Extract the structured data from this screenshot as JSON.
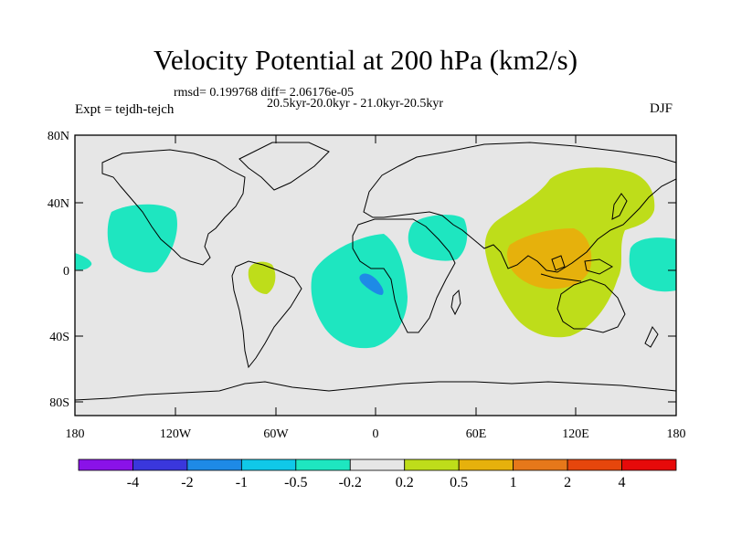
{
  "title": "Velocity Potential at 200 hPa (km2/s)",
  "subtitle_stats": "rmsd= 0.199768 diff= 2.06176e-05",
  "subtitle_periods": "20.5kyr-20.0kyr - 21.0kyr-20.5kyr",
  "experiment": "Expt = tejdh-tejch",
  "season": "DJF",
  "axes": {
    "lat_ticks": [
      "80N",
      "40N",
      "0",
      "40S",
      "80S"
    ],
    "lon_ticks": [
      "180",
      "120W",
      "60W",
      "0",
      "60E",
      "120E",
      "180"
    ]
  },
  "colorbar": {
    "labels": [
      "-4",
      "-2",
      "-1",
      "-0.5",
      "-0.2",
      "0.2",
      "0.5",
      "1",
      "2",
      "4"
    ],
    "colors": [
      "#8a12e8",
      "#3a37dc",
      "#1e8ae6",
      "#10c8e8",
      "#1ee6c0",
      "#e6e6e6",
      "#bedd1a",
      "#e6b10c",
      "#e6781a",
      "#e6460c",
      "#e60a0a"
    ]
  },
  "colors": {
    "background": "#e6e6e6",
    "neg_small": "#1ee6c0",
    "neg_mid": "#1e8ae6",
    "pos_small": "#bedd1a",
    "pos_mid": "#e6b10c"
  }
}
